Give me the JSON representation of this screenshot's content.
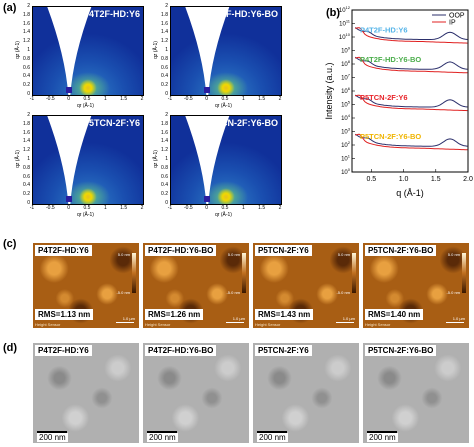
{
  "panel_a": {
    "label": "(a)",
    "titles": [
      "P4T2F-HD:Y6",
      "P4T2F-HD:Y6-BO",
      "P5TCN-2F:Y6",
      "P5TCN-2F:Y6-BO"
    ],
    "y_axis_label": "qz (Å-1)",
    "x_axis_label": "qr (Å-1)",
    "y_ticks": [
      "2",
      "1.8",
      "1.6",
      "1.4",
      "1.2",
      "1",
      "0.8",
      "0.6",
      "0.4",
      "0.2",
      "0"
    ],
    "x_ticks": [
      "-1",
      "-0.5",
      "0",
      "0.5",
      "1",
      "1.5",
      "2"
    ]
  },
  "panel_b": {
    "label": "(b)",
    "chart_data": {
      "type": "line",
      "xlabel": "q (Å-1)",
      "ylabel": "Intensity (a.u.)",
      "xlim": [
        0.2,
        2.0
      ],
      "ylim_exp": [
        0,
        12
      ],
      "log_scale_y": true,
      "x_ticks": [
        "0.5",
        "1.0",
        "1.5",
        "2.0"
      ],
      "y_ticks": [
        "10^0",
        "10^1",
        "10^2",
        "10^3",
        "10^4",
        "10^5",
        "10^6",
        "10^7",
        "10^8",
        "10^9",
        "10^10",
        "10^11",
        "10^12"
      ],
      "legend": [
        {
          "name": "OOP",
          "color": "#2b2f6b"
        },
        {
          "name": "IP",
          "color": "#e02020"
        }
      ],
      "samples": [
        {
          "name": "P4T2F-HD:Y6",
          "color": "#55b4e8",
          "base_exp": 9.8
        },
        {
          "name": "P4T2F-HD:Y6-BO",
          "color": "#4cae4c",
          "base_exp": 7.6
        },
        {
          "name": "P5TCN-2F:Y6",
          "color": "#e8242a",
          "base_exp": 4.8
        },
        {
          "name": "P5TCN-2F:Y6-BO",
          "color": "#f0b400",
          "base_exp": 1.9
        }
      ]
    }
  },
  "panel_c": {
    "label": "(c)",
    "images": [
      {
        "title": "P4T2F-HD:Y6",
        "rms": "RMS=1.13 nm",
        "footer": "Height Sensor",
        "scale": "1.0 µm",
        "cmax": "5.0 nm",
        "cmin": "-5.0 nm"
      },
      {
        "title": "P4T2F-HD:Y6-BO",
        "rms": "RMS=1.26 nm",
        "footer": "Height Sensor",
        "scale": "1.0 µm",
        "cmax": "5.0 nm",
        "cmin": "-5.0 nm"
      },
      {
        "title": "P5TCN-2F:Y6",
        "rms": "RMS=1.43 nm",
        "footer": "Height Sensor",
        "scale": "1.0 µm",
        "cmax": "5.0 nm",
        "cmin": "-5.0 nm"
      },
      {
        "title": "P5TCN-2F:Y6-BO",
        "rms": "RMS=1.40 nm",
        "footer": "Height Sensor",
        "scale": "1.0 µm",
        "cmax": "5.0 nm",
        "cmin": "-5.0 nm"
      }
    ]
  },
  "panel_d": {
    "label": "(d)",
    "images": [
      {
        "title": "P4T2F-HD:Y6",
        "scale": "200 nm"
      },
      {
        "title": "P4T2F-HD:Y6-BO",
        "scale": "200 nm"
      },
      {
        "title": "P5TCN-2F:Y6",
        "scale": "200 nm"
      },
      {
        "title": "P5TCN-2F:Y6-BO",
        "scale": "200 nm"
      }
    ]
  }
}
